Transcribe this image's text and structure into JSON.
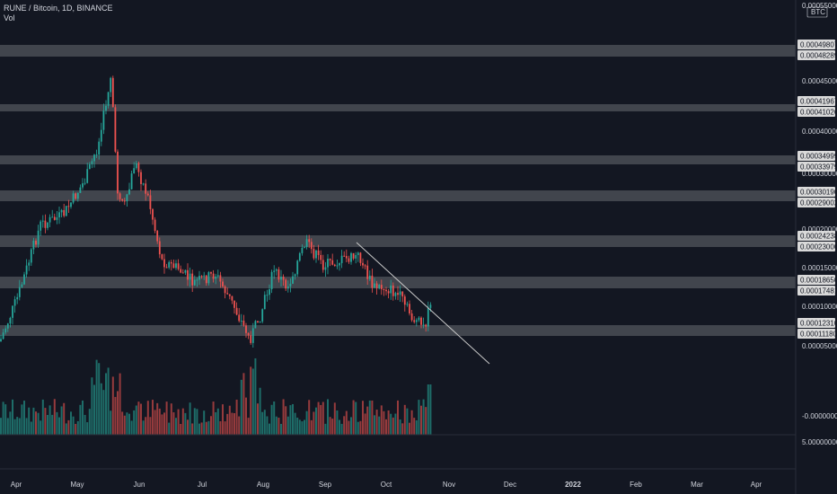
{
  "header": {
    "symbol_line": "RUNE / Bitcoin, 1D, BINANCE",
    "volume_label": "Vol"
  },
  "price_axis": {
    "currency": "BTC",
    "top_value": "0.00055000",
    "ticks": [
      "0.00045000",
      "0.00040000",
      "0.00030000",
      "0.00020000",
      "0.00015000",
      "0.00010000",
      "0.00005000",
      "-0.00000000"
    ],
    "volume_tick": "5.00000000"
  },
  "zones": [
    {
      "top": "0.00049807",
      "bottom": "0.00048289"
    },
    {
      "top": "0.00041967",
      "bottom": "0.00041026"
    },
    {
      "top": "0.00034999",
      "bottom": "0.00033979"
    },
    {
      "top": "0.00030190",
      "bottom": "0.00029002"
    },
    {
      "top": "0.00024238",
      "bottom": "0.00023000"
    },
    {
      "top": "0.00018650",
      "bottom": "0.00017481"
    },
    {
      "top": "0.00012310",
      "bottom": "0.00011180"
    }
  ],
  "time_axis": [
    "Apr",
    "May",
    "Jun",
    "Jul",
    "Aug",
    "Sep",
    "Oct",
    "Nov",
    "Dec",
    "2022",
    "Feb",
    "Mar",
    "Apr"
  ],
  "colors": {
    "background": "#131722",
    "up": "#26a69a",
    "down": "#ef5350",
    "zone": "#4a4d55",
    "trendline": "#c8c8c8"
  }
}
